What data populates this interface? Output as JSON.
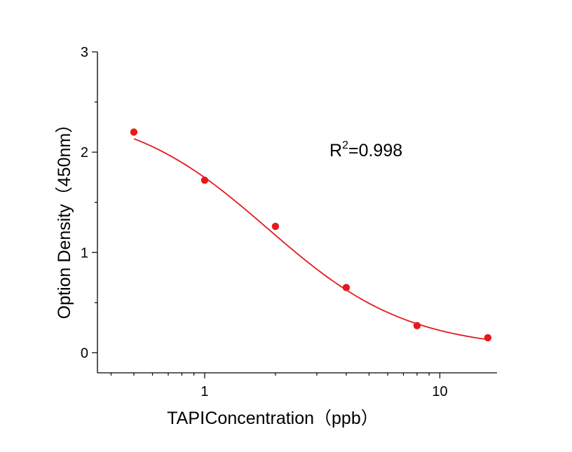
{
  "chart_data": {
    "type": "scatter",
    "title": "",
    "xlabel": "TAPⅠConcentration（ppb）",
    "ylabel": "Option Density（450nm）",
    "xscale": "log",
    "xlim": [
      0.35,
      17.5
    ],
    "ylim": [
      -0.2,
      3
    ],
    "x_tick_labels": [
      "1",
      "10"
    ],
    "y_tick_labels": [
      "0",
      "1",
      "2",
      "3"
    ],
    "grid": false,
    "legend": "none",
    "series": [
      {
        "marker_color": "#e8191c",
        "x": [
          0.5,
          1,
          2,
          4,
          8,
          16
        ],
        "y": [
          2.2,
          1.72,
          1.26,
          0.65,
          0.27,
          0.15
        ]
      }
    ],
    "fit_curve": {
      "color": "#e31a1c",
      "model": "4PL",
      "params": {
        "A1": 2.45,
        "A2": 0.03,
        "x0": 1.85,
        "p": 1.45
      }
    },
    "annotation": {
      "base": "R",
      "sup": "2",
      "rest": "=0.998"
    }
  }
}
